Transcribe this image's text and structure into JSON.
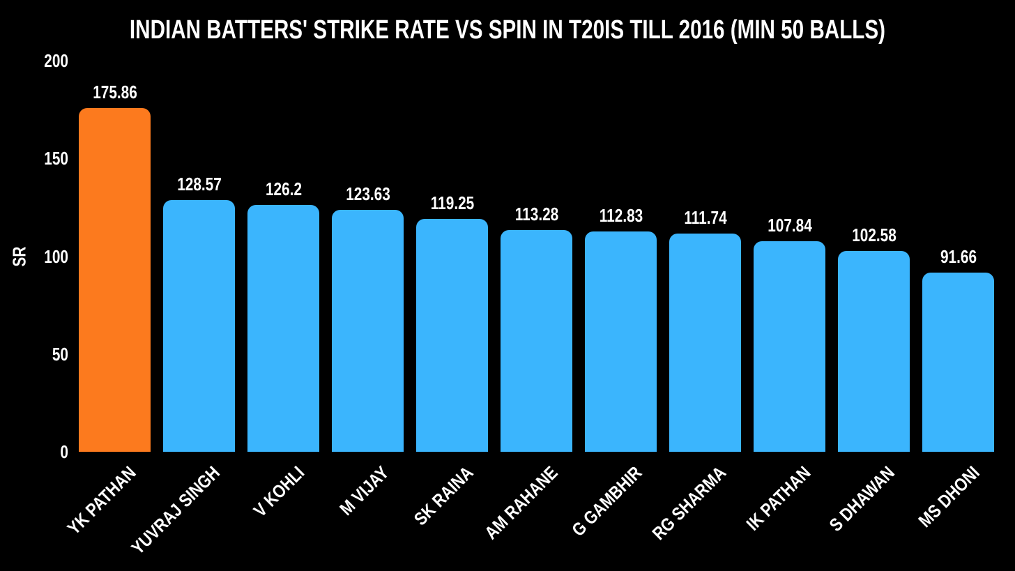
{
  "chart_data": {
    "type": "bar",
    "title": "INDIAN BATTERS' STRIKE RATE VS SPIN IN T20IS TILL 2016 (MIN 50 BALLS)",
    "xlabel": "",
    "ylabel": "SR",
    "categories": [
      "YK PATHAN",
      "YUVRAJ SINGH",
      "V KOHLI",
      "M VIJAY",
      "SK RAINA",
      "AM RAHANE",
      "G GAMBHIR",
      "RG SHARMA",
      "IK PATHAN",
      "S DHAWAN",
      "MS DHONI"
    ],
    "values": [
      175.86,
      128.57,
      126.2,
      123.63,
      119.25,
      113.28,
      112.83,
      111.74,
      107.84,
      102.58,
      91.66
    ],
    "value_labels": [
      "175.86",
      "128.57",
      "126.2",
      "123.63",
      "119.25",
      "113.28",
      "112.83",
      "111.74",
      "107.84",
      "102.58",
      "91.66"
    ],
    "yticks": [
      0,
      50,
      100,
      150,
      200
    ],
    "ylim": [
      0,
      200
    ],
    "grid": false,
    "legend": null,
    "highlight_index": 0,
    "colors": {
      "background": "#000000",
      "bar": "#3BB5FD",
      "highlight": "#FC7A1E",
      "text": "#FFFFFF"
    }
  }
}
